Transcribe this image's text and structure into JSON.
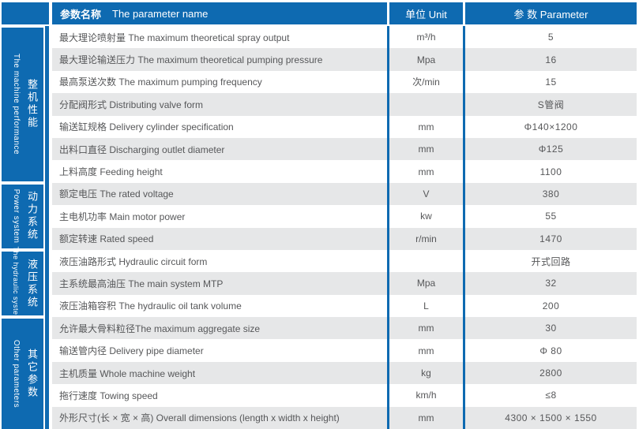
{
  "colors": {
    "accent_blue": "#0e6ab1",
    "row_gray": "#e6e7e8",
    "text_gray": "#565759"
  },
  "header": {
    "name_zh": "参数名称",
    "name_en": "The parameter name",
    "unit": "单位 Unit",
    "param": "参 数 Parameter"
  },
  "sidebar": {
    "sections": [
      {
        "zh": "整机性能",
        "en": "The machine performance"
      },
      {
        "zh": "动力系统",
        "en": "Power system"
      },
      {
        "zh": "液压系统",
        "en": "The hydraulic system"
      },
      {
        "zh": "其它参数",
        "en": "Other parameters"
      }
    ]
  },
  "rows": [
    {
      "name": "最大理论喷射量 The maximum theoretical spray output",
      "unit": "m³/h",
      "value": "5"
    },
    {
      "name": "最大理论输送压力 The maximum theoretical pumping pressure",
      "unit": "Mpa",
      "value": "16"
    },
    {
      "name": "最高泵送次数 The maximum pumping frequency",
      "unit": "次/min",
      "value": "15"
    },
    {
      "name": "分配阀形式 Distributing valve form",
      "unit": "",
      "value": "S管阀"
    },
    {
      "name": "输送缸规格 Delivery cylinder specification",
      "unit": "mm",
      "value": "Φ140×1200"
    },
    {
      "name": "出料口直径 Discharging outlet diameter",
      "unit": "mm",
      "value": "Φ125"
    },
    {
      "name": "上料高度 Feeding height",
      "unit": "mm",
      "value": "1100"
    },
    {
      "name": "额定电压 The rated voltage",
      "unit": "V",
      "value": "380"
    },
    {
      "name": "主电机功率 Main motor power",
      "unit": "kw",
      "value": "55"
    },
    {
      "name": "额定转速 Rated speed",
      "unit": "r/min",
      "value": "1470"
    },
    {
      "name": "液压油路形式 Hydraulic circuit form",
      "unit": "",
      "value": "开式回路"
    },
    {
      "name": "主系统最高油压 The main system MTP",
      "unit": "Mpa",
      "value": "32"
    },
    {
      "name": "液压油箱容积 The hydraulic oil tank volume",
      "unit": "L",
      "value": "200"
    },
    {
      "name": "允许最大骨料粒径The maximum aggregate size",
      "unit": "mm",
      "value": "30"
    },
    {
      "name": "输送管内径 Delivery pipe diameter",
      "unit": "mm",
      "value": "Φ 80"
    },
    {
      "name": "主机质量 Whole machine weight",
      "unit": "kg",
      "value": "2800"
    },
    {
      "name": "拖行速度 Towing speed",
      "unit": "km/h",
      "value": "≤8"
    },
    {
      "name": "外形尺寸(长 × 宽 × 高) Overall dimensions (length x width x height)",
      "unit": "mm",
      "value": "4300 × 1500 × 1550"
    }
  ]
}
